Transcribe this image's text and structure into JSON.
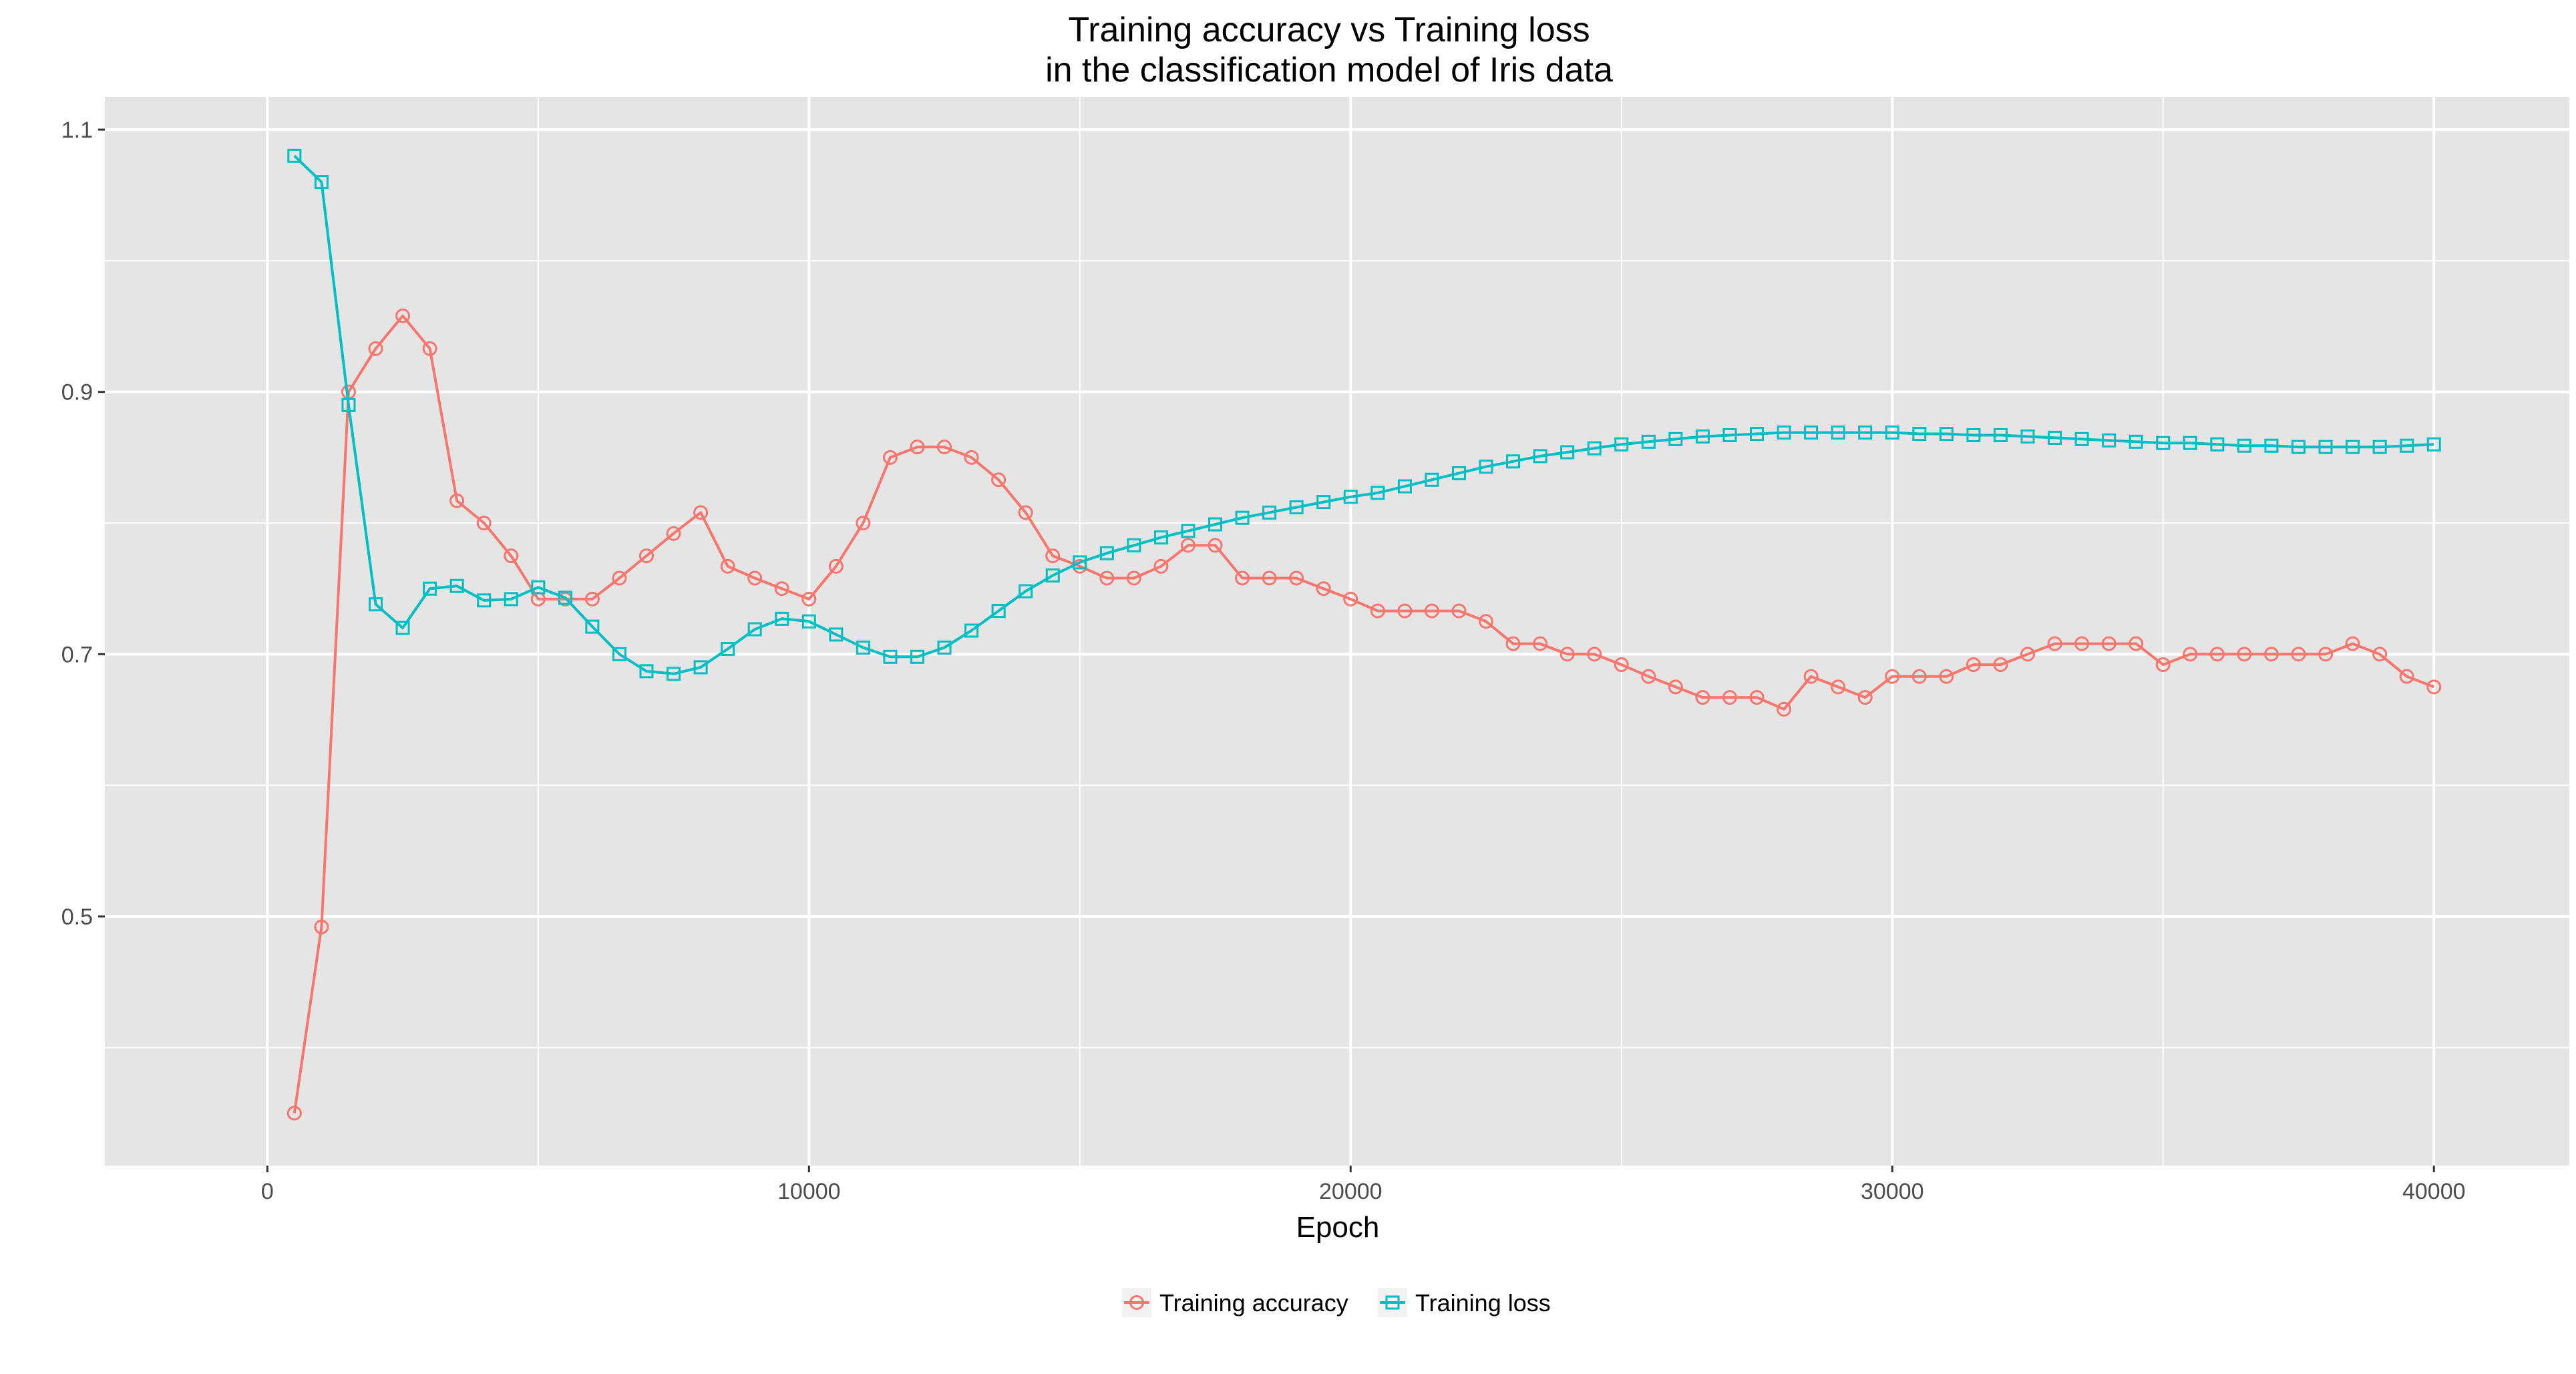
{
  "chart_data": {
    "type": "line",
    "title": [
      "Training accuracy vs Training loss",
      "in the classification model of Iris data"
    ],
    "xlabel": "Epoch",
    "ylabel": "",
    "xlim": [
      -3000,
      42500
    ],
    "ylim": [
      0.31,
      1.125
    ],
    "x_ticks": [
      0,
      10000,
      20000,
      30000,
      40000
    ],
    "x_tick_labels": [
      "0",
      "10000",
      "20000",
      "30000",
      "40000"
    ],
    "y_ticks": [
      0.5,
      0.7,
      0.9,
      1.1
    ],
    "y_tick_labels": [
      "0.5",
      "0.7",
      "0.9",
      "1.1"
    ],
    "y_minor_ticks": [
      0.4,
      0.6,
      0.8,
      1.0
    ],
    "x_minor_ticks": [
      5000,
      15000,
      25000,
      35000
    ],
    "grid": true,
    "legend_position": "bottom",
    "x": [
      500,
      1000,
      1500,
      2000,
      2500,
      3000,
      3500,
      4000,
      4500,
      5000,
      5500,
      6000,
      6500,
      7000,
      7500,
      8000,
      8500,
      9000,
      9500,
      10000,
      10500,
      11000,
      11500,
      12000,
      12500,
      13000,
      13500,
      14000,
      14500,
      15000,
      15500,
      16000,
      16500,
      17000,
      17500,
      18000,
      18500,
      19000,
      19500,
      20000,
      20500,
      21000,
      21500,
      22000,
      22500,
      23000,
      23500,
      24000,
      24500,
      25000,
      25500,
      26000,
      26500,
      27000,
      27500,
      28000,
      28500,
      29000,
      29500,
      30000,
      30500,
      31000,
      31500,
      32000,
      32500,
      33000,
      33500,
      34000,
      34500,
      35000,
      35500,
      36000,
      36500,
      37000,
      37500,
      38000,
      38500,
      39000,
      39500,
      40000
    ],
    "series": [
      {
        "name": "Training accuracy",
        "color": "#F8766D",
        "marker": "circle",
        "values": [
          0.35,
          0.492,
          0.9,
          0.933,
          0.958,
          0.933,
          0.817,
          0.8,
          0.775,
          0.742,
          0.742,
          0.742,
          0.758,
          0.775,
          0.792,
          0.808,
          0.767,
          0.758,
          0.75,
          0.742,
          0.767,
          0.8,
          0.85,
          0.858,
          0.858,
          0.85,
          0.833,
          0.808,
          0.775,
          0.767,
          0.758,
          0.758,
          0.767,
          0.783,
          0.783,
          0.758,
          0.758,
          0.758,
          0.75,
          0.742,
          0.733,
          0.733,
          0.733,
          0.733,
          0.725,
          0.708,
          0.708,
          0.7,
          0.7,
          0.692,
          0.683,
          0.675,
          0.667,
          0.667,
          0.667,
          0.658,
          0.683,
          0.675,
          0.667,
          0.683,
          0.683,
          0.683,
          0.692,
          0.692,
          0.7,
          0.708,
          0.708,
          0.708,
          0.708,
          0.692,
          0.7,
          0.7,
          0.7,
          0.7,
          0.7,
          0.7,
          0.708,
          0.7,
          0.683,
          0.675
        ]
      },
      {
        "name": "Training loss",
        "color": "#00BFC4",
        "marker": "square",
        "values": [
          1.08,
          1.06,
          0.89,
          0.738,
          0.72,
          0.75,
          0.752,
          0.741,
          0.742,
          0.751,
          0.743,
          0.721,
          0.7,
          0.687,
          0.685,
          0.69,
          0.704,
          0.719,
          0.727,
          0.725,
          0.715,
          0.705,
          0.698,
          0.698,
          0.705,
          0.718,
          0.733,
          0.748,
          0.76,
          0.77,
          0.777,
          0.783,
          0.789,
          0.794,
          0.799,
          0.804,
          0.808,
          0.812,
          0.816,
          0.82,
          0.823,
          0.828,
          0.833,
          0.838,
          0.843,
          0.847,
          0.851,
          0.854,
          0.857,
          0.86,
          0.862,
          0.864,
          0.866,
          0.867,
          0.868,
          0.869,
          0.869,
          0.869,
          0.869,
          0.869,
          0.868,
          0.868,
          0.867,
          0.867,
          0.866,
          0.865,
          0.864,
          0.863,
          0.862,
          0.861,
          0.861,
          0.86,
          0.859,
          0.859,
          0.858,
          0.858,
          0.858,
          0.858,
          0.859,
          0.86
        ]
      }
    ]
  }
}
